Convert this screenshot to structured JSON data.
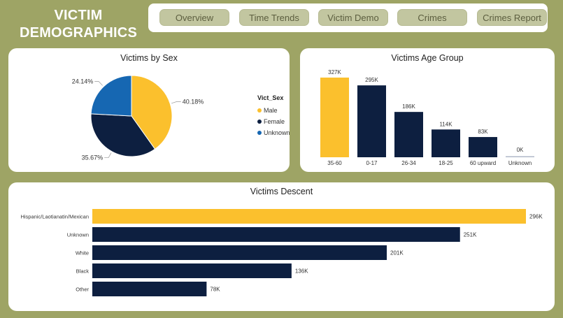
{
  "header": {
    "title_line1": "VICTIM",
    "title_line2": "DEMOGRAPHICS"
  },
  "nav": {
    "items": [
      {
        "label": "Overview"
      },
      {
        "label": "Time Trends"
      },
      {
        "label": "Victim Demo"
      },
      {
        "label": "Crimes"
      },
      {
        "label": "Crimes Report"
      }
    ]
  },
  "colors": {
    "accent": "#fbc02d",
    "navy": "#0d1f40",
    "blue": "#1667b2",
    "olive_bg": "#9ea465"
  },
  "chart_data": [
    {
      "type": "pie",
      "title": "Victims by Sex",
      "legend_title": "Vict_Sex",
      "legend_position": "right",
      "slices": [
        {
          "name": "Male",
          "value": 40.18,
          "label": "40.18%",
          "color": "#fbc02d"
        },
        {
          "name": "Female",
          "value": 35.67,
          "label": "35.67%",
          "color": "#0d1f40"
        },
        {
          "name": "Unknown",
          "value": 24.14,
          "label": "24.14%",
          "color": "#1667b2"
        }
      ]
    },
    {
      "type": "bar",
      "title": "Victims Age Group",
      "categories": [
        "35-60",
        "0-17",
        "26-34",
        "18-25",
        "60 upward",
        "Unknown"
      ],
      "values": [
        327,
        295,
        186,
        114,
        83,
        0
      ],
      "value_labels": [
        "327K",
        "295K",
        "186K",
        "114K",
        "83K",
        "0K"
      ],
      "unit": "K",
      "highlight_index": 0
    },
    {
      "type": "bar",
      "orientation": "horizontal",
      "title": "Victims Descent",
      "categories": [
        "Hispanic/Laotianatin/Mexican",
        "Unknown",
        "White",
        "Black",
        "Other"
      ],
      "values": [
        296,
        251,
        201,
        136,
        78
      ],
      "value_labels": [
        "296K",
        "251K",
        "201K",
        "136K",
        "78K"
      ],
      "unit": "K",
      "highlight_index": 0
    }
  ]
}
